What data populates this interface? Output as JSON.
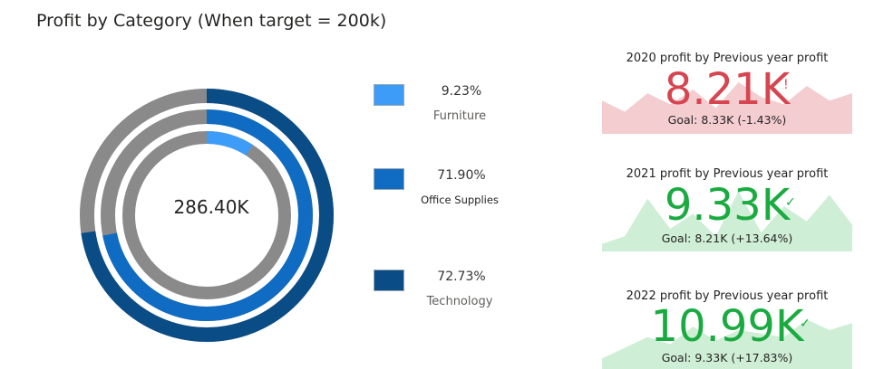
{
  "chart_data": {
    "type": "donut",
    "title": "Profit by Category (When target = 200k)",
    "center_label": "286.40K",
    "series": [
      {
        "name": "Furniture",
        "percent": 9.23,
        "label": "9.23%",
        "color": "#3d9cf7"
      },
      {
        "name": "Office Supplies",
        "percent": 71.9,
        "label": "71.90%",
        "color": "#0f6cc2"
      },
      {
        "name": "Technology",
        "percent": 72.73,
        "label": "72.73%",
        "color": "#0a4c85"
      }
    ],
    "remainder_color": "#8a8a8a"
  },
  "kpis": [
    {
      "title": "2020 profit by Previous year profit",
      "value": "8.21K",
      "indicator": "!",
      "goal": "Goal: 8.33K (-1.43%)",
      "status": "below",
      "value_color": "#d64550",
      "trend_color": "#f4cdd1",
      "trend": [
        45,
        30,
        55,
        40,
        60,
        35,
        70,
        50,
        40,
        65,
        45,
        55
      ]
    },
    {
      "title": "2021 profit by Previous year profit",
      "value": "9.33K",
      "indicator": "✓",
      "goal": "Goal: 8.21K (+13.64%)",
      "status": "above",
      "value_color": "#1aab40",
      "trend_color": "#cfeed6",
      "trend": [
        10,
        20,
        70,
        30,
        50,
        20,
        80,
        25,
        60,
        40,
        75,
        35
      ]
    },
    {
      "title": "2022 profit by Previous year profit",
      "value": "10.99K",
      "indicator": "✓",
      "goal": "Goal: 9.33K (+17.83%)",
      "status": "above",
      "value_color": "#1aab40",
      "trend_color": "#cfeed6",
      "trend": [
        15,
        30,
        45,
        35,
        60,
        40,
        55,
        50,
        45,
        70,
        55,
        65
      ]
    }
  ]
}
